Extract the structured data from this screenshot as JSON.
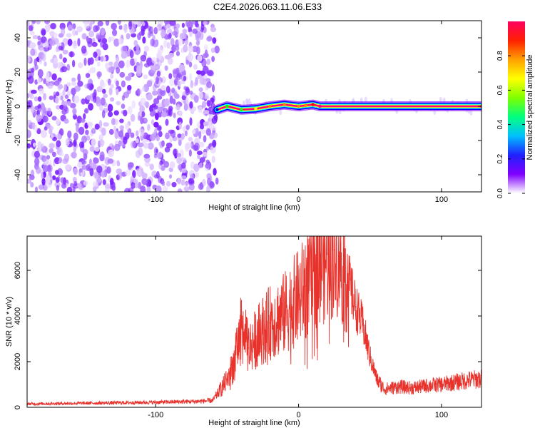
{
  "title": "C2E4.2026.063.11.06.E33",
  "chart_data": [
    {
      "type": "heatmap",
      "xlabel": "Height of straight line (km)",
      "ylabel": "Frequency (Hz)",
      "xlim": [
        -190,
        128
      ],
      "ylim": [
        -50,
        50
      ],
      "x_ticks": [
        -100,
        0,
        100
      ],
      "x_tick_labels": [
        "-100",
        "0",
        "100"
      ],
      "y_ticks": [
        -40,
        -20,
        0,
        20,
        40
      ],
      "y_tick_labels": [
        "-40",
        "-20",
        "0",
        "20",
        "40"
      ],
      "colorbar": {
        "label": "Normalized spectral amplitude",
        "range": [
          0,
          1
        ],
        "ticks": [
          0.0,
          0.2,
          0.4,
          0.6,
          0.8
        ],
        "tick_labels": [
          "0.0",
          "0.2",
          "0.4",
          "0.6",
          "0.8"
        ],
        "colormap": [
          "#ffffff",
          "#8000ff",
          "#0000ff",
          "#00ffff",
          "#00ff00",
          "#ffff00",
          "#ff8000",
          "#ff0000",
          "#ff0080"
        ]
      },
      "noise_region_x": [
        -190,
        -57
      ],
      "ridge": {
        "x": [
          -57,
          -50,
          -40,
          -30,
          -20,
          -10,
          0,
          5,
          10,
          15,
          128
        ],
        "frequency": [
          -2,
          0,
          -2,
          -1.5,
          0,
          1,
          0,
          0.5,
          1,
          0,
          0
        ],
        "normalized_amplitude": [
          0.3,
          0.45,
          0.55,
          0.6,
          0.7,
          0.75,
          0.8,
          0.8,
          0.85,
          0.95,
          0.95
        ]
      },
      "grid": false
    },
    {
      "type": "line",
      "xlabel": "Height of straight line (km)",
      "ylabel": "SNR (10 * v/v)",
      "xlim": [
        -190,
        128
      ],
      "ylim": [
        0,
        7500
      ],
      "x_ticks": [
        -100,
        0,
        100
      ],
      "x_tick_labels": [
        "-100",
        "0",
        "100"
      ],
      "y_ticks": [
        0,
        2000,
        4000,
        6000
      ],
      "y_tick_labels": [
        "0",
        "2000",
        "4000",
        "6000"
      ],
      "line_color": "#e8322c",
      "grid": false,
      "series": [
        {
          "x": [
            -190,
            -150,
            -100,
            -70,
            -60,
            -50,
            -45,
            -40,
            -35,
            -30,
            -25,
            -20,
            -15,
            -10,
            -5,
            0,
            5,
            10,
            15,
            20,
            25,
            30,
            35,
            40,
            45,
            50,
            55,
            60,
            70,
            80,
            90,
            100,
            110,
            120,
            128
          ],
          "y": [
            150,
            180,
            220,
            260,
            300,
            1200,
            2000,
            3500,
            2600,
            3000,
            3400,
            3700,
            3900,
            4100,
            4500,
            4800,
            5300,
            6000,
            6400,
            6700,
            6900,
            6500,
            5500,
            4400,
            3600,
            2200,
            1200,
            800,
            900,
            850,
            950,
            1000,
            1100,
            1200,
            1250
          ]
        }
      ]
    }
  ]
}
